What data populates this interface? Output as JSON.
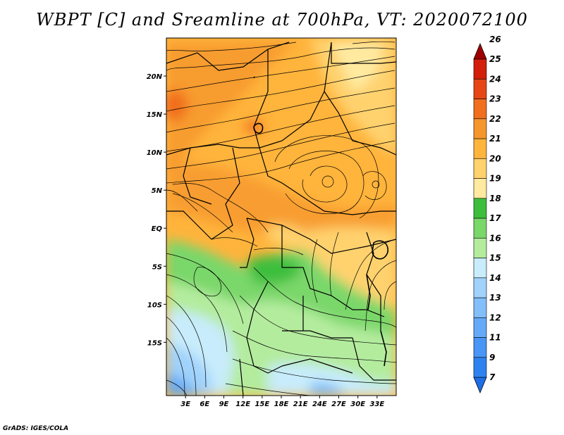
{
  "title": "WBPT [C] and Sreamline at 700hPa, VT: 2020072100",
  "credit": "GrADS: IGES/COLA",
  "map": {
    "lon_range": [
      0,
      36
    ],
    "lat_range": [
      -22,
      25
    ],
    "lat_ticks": [
      {
        "value": 20,
        "label": "20N"
      },
      {
        "value": 15,
        "label": "15N"
      },
      {
        "value": 10,
        "label": "10N"
      },
      {
        "value": 5,
        "label": "5N"
      },
      {
        "value": 0,
        "label": "EQ"
      },
      {
        "value": -5,
        "label": "5S"
      },
      {
        "value": -10,
        "label": "10S"
      },
      {
        "value": -15,
        "label": "15S"
      }
    ],
    "lon_ticks": [
      {
        "value": 3,
        "label": "3E"
      },
      {
        "value": 6,
        "label": "6E"
      },
      {
        "value": 9,
        "label": "9E"
      },
      {
        "value": 12,
        "label": "12E"
      },
      {
        "value": 15,
        "label": "15E"
      },
      {
        "value": 18,
        "label": "18E"
      },
      {
        "value": 21,
        "label": "21E"
      },
      {
        "value": 24,
        "label": "24E"
      },
      {
        "value": 27,
        "label": "27E"
      },
      {
        "value": 30,
        "label": "30E"
      },
      {
        "value": 33,
        "label": "33E"
      }
    ]
  },
  "colorbar": {
    "levels": [
      "7",
      "9",
      "11",
      "12",
      "13",
      "14",
      "15",
      "16",
      "17",
      "18",
      "19",
      "20",
      "21",
      "22",
      "23",
      "24",
      "25",
      "26"
    ],
    "colors": [
      "#1e6ee6",
      "#2e82f0",
      "#4896f5",
      "#64aaf8",
      "#82bef9",
      "#a0d2fb",
      "#c8ecfb",
      "#b4ec9e",
      "#7ad76a",
      "#3cbe3c",
      "#ffeaa0",
      "#ffd26e",
      "#ffb43c",
      "#f5962d",
      "#f06e1e",
      "#e64614",
      "#d21e0a",
      "#a00000"
    ]
  }
}
